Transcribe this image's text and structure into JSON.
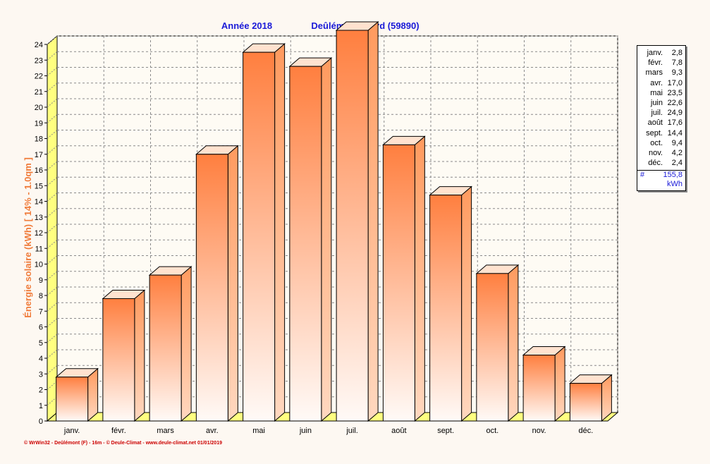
{
  "title": "Année  2018",
  "location": "Deûlémont, Nord (59890)",
  "footer": "© WrWin32 - Deûlémont (F) - 16m - © Deule-Climat - www.deule-climat.net  01/01/2019",
  "legend": {
    "rows": [
      {
        "month": "janv.",
        "value": "2,8"
      },
      {
        "month": "févr.",
        "value": "7,8"
      },
      {
        "month": "mars",
        "value": "9,3"
      },
      {
        "month": "avr.",
        "value": "17,0"
      },
      {
        "month": "mai",
        "value": "23,5"
      },
      {
        "month": "juin",
        "value": "22,6"
      },
      {
        "month": "juil.",
        "value": "24,9"
      },
      {
        "month": "août",
        "value": "17,6"
      },
      {
        "month": "sept.",
        "value": "14,4"
      },
      {
        "month": "oct.",
        "value": "9,4"
      },
      {
        "month": "nov.",
        "value": "4,2"
      },
      {
        "month": "déc.",
        "value": "2,4"
      }
    ],
    "total_symbol": "#",
    "total_value": "155,8",
    "total_unit": "kWh"
  },
  "chart_data": {
    "type": "bar",
    "title": "Année  2018",
    "subtitle": "Deûlémont, Nord (59890)",
    "ylabel": "Énergie solaire  (kWh)    [ 14% - 1.0qm ]",
    "xlabel": "",
    "categories": [
      "janv.",
      "févr.",
      "mars",
      "avr.",
      "mai",
      "juin",
      "juil.",
      "août",
      "sept.",
      "oct.",
      "nov.",
      "déc."
    ],
    "values": [
      2.8,
      7.8,
      9.3,
      17.0,
      23.5,
      22.6,
      24.9,
      17.6,
      14.4,
      9.4,
      4.2,
      2.4
    ],
    "ylim": [
      0,
      24
    ],
    "yticks": [
      0,
      1,
      2,
      3,
      4,
      5,
      6,
      7,
      8,
      9,
      10,
      11,
      12,
      13,
      14,
      15,
      16,
      17,
      18,
      19,
      20,
      21,
      22,
      23,
      24
    ],
    "grid": true,
    "legend_position": "right",
    "colors": {
      "bar_top": "#ff7f3f",
      "bar_bottom": "#fffaf7",
      "bar_side": "#ff8a4a",
      "bar_cap": "#ffe2cf",
      "wall": "#ffff80",
      "plot_bg": "#fefbf4",
      "title": "#1a1ad8",
      "ylabel": "#f07b3a",
      "footer": "#cc0000"
    }
  }
}
